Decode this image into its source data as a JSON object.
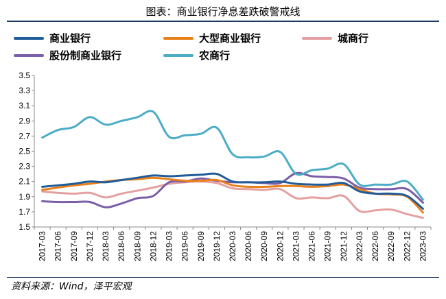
{
  "title": "图表：商业银行净息差跌破警戒线",
  "source": "资料来源：Wind，泽平宏观",
  "chart_data": {
    "type": "line",
    "title": "图表：商业银行净息差跌破警戒线",
    "xlabel": "",
    "ylabel": "",
    "ylim": [
      1.5,
      3.5
    ],
    "yticks": [
      "1.5",
      "1.7",
      "1.9",
      "2.1",
      "2.3",
      "2.5",
      "2.7",
      "2.9",
      "3.1",
      "3.3",
      "3.5"
    ],
    "grid": false,
    "legend_position": "top",
    "categories": [
      "2017-03",
      "2017-06",
      "2017-09",
      "2017-12",
      "2018-03",
      "2018-06",
      "2018-09",
      "2018-12",
      "2019-03",
      "2019-06",
      "2019-09",
      "2019-12",
      "2020-03",
      "2020-06",
      "2020-09",
      "2020-12",
      "2021-03",
      "2021-06",
      "2021-09",
      "2021-12",
      "2022-03",
      "2022-06",
      "2022-09",
      "2022-12",
      "2023-03"
    ],
    "series": [
      {
        "name": "商业银行",
        "color": "#1f5c99",
        "values": [
          2.03,
          2.05,
          2.07,
          2.1,
          2.09,
          2.12,
          2.15,
          2.18,
          2.17,
          2.18,
          2.19,
          2.2,
          2.1,
          2.09,
          2.09,
          2.1,
          2.07,
          2.06,
          2.06,
          2.08,
          1.97,
          1.94,
          1.94,
          1.91,
          1.74
        ]
      },
      {
        "name": "大型商业银行",
        "color": "#e8801a",
        "values": [
          1.99,
          2.02,
          2.05,
          2.07,
          2.1,
          2.12,
          2.13,
          2.15,
          2.13,
          2.11,
          2.11,
          2.12,
          2.05,
          2.03,
          2.03,
          2.04,
          2.04,
          2.03,
          2.04,
          2.06,
          2.0,
          1.94,
          1.93,
          1.9,
          1.69
        ]
      },
      {
        "name": "城商行",
        "color": "#e4a0a0",
        "values": [
          1.97,
          1.95,
          1.94,
          1.95,
          1.89,
          1.94,
          1.98,
          2.02,
          2.07,
          2.09,
          2.1,
          2.08,
          2.01,
          2.0,
          1.99,
          2.0,
          1.88,
          1.89,
          1.88,
          1.91,
          1.71,
          1.72,
          1.73,
          1.67,
          1.62
        ]
      },
      {
        "name": "股份制商业银行",
        "color": "#7b5ea8",
        "values": [
          1.84,
          1.83,
          1.83,
          1.83,
          1.76,
          1.81,
          1.88,
          1.91,
          2.09,
          2.1,
          2.14,
          2.11,
          2.09,
          2.09,
          2.08,
          2.08,
          2.21,
          2.17,
          2.16,
          2.14,
          2.02,
          2.0,
          2.0,
          2.0,
          1.82
        ]
      },
      {
        "name": "农商行",
        "color": "#4bacc6",
        "values": [
          2.68,
          2.78,
          2.82,
          2.95,
          2.85,
          2.9,
          2.95,
          3.02,
          2.69,
          2.71,
          2.73,
          2.81,
          2.46,
          2.42,
          2.43,
          2.49,
          2.2,
          2.25,
          2.27,
          2.33,
          2.06,
          2.06,
          2.06,
          2.1,
          1.86
        ]
      }
    ]
  }
}
